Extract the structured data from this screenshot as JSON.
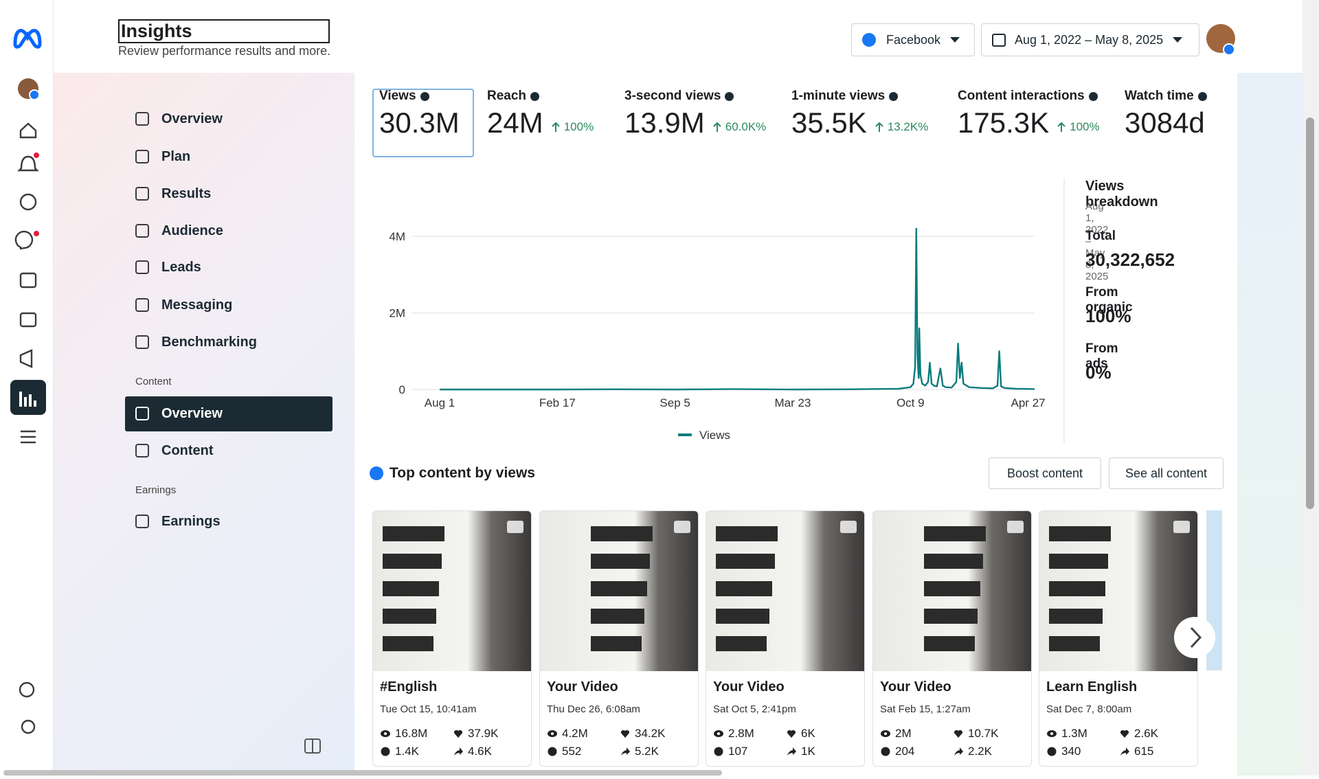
{
  "header": {
    "title": "Insights",
    "subtitle": "Review performance results and more.",
    "platform": "Facebook",
    "date_range": "Aug 1, 2022 – May 8, 2025"
  },
  "nav": {
    "items": [
      "Overview",
      "Plan",
      "Results",
      "Audience",
      "Leads",
      "Messaging",
      "Benchmarking"
    ],
    "content_heading": "Content",
    "content_items": [
      "Overview",
      "Content"
    ],
    "earnings_heading": "Earnings",
    "earnings_items": [
      "Earnings"
    ]
  },
  "metrics": [
    {
      "label": "Views",
      "value": "30.3M"
    },
    {
      "label": "Reach",
      "value": "24M",
      "change": "100%"
    },
    {
      "label": "3-second views",
      "value": "13.9M",
      "change": "60.0K%"
    },
    {
      "label": "1-minute views",
      "value": "35.5K",
      "change": "13.2K%"
    },
    {
      "label": "Content interactions",
      "value": "175.3K",
      "change": "100%"
    },
    {
      "label": "Watch time",
      "value": "3084d"
    }
  ],
  "chart_data": {
    "type": "line",
    "x": [
      0,
      100,
      200,
      300,
      400,
      500,
      600,
      700,
      780,
      800,
      805,
      808,
      810,
      812,
      814,
      815,
      817,
      820,
      825,
      830,
      833,
      836,
      840,
      845,
      851,
      855,
      860,
      870,
      878,
      881,
      884,
      887,
      890,
      900,
      920,
      940,
      948,
      951,
      954,
      960,
      980,
      1000,
      1011
    ],
    "xlim": [
      0,
      1011
    ],
    "xticks": [
      {
        "value": 0,
        "label": "Aug 1"
      },
      {
        "value": 200,
        "label": "Feb 17"
      },
      {
        "value": 400,
        "label": "Sep 5"
      },
      {
        "value": 600,
        "label": "Mar 23"
      },
      {
        "value": 800,
        "label": "Oct 9"
      },
      {
        "value": 1000,
        "label": "Apr 27"
      }
    ],
    "ylim": [
      0,
      4200000
    ],
    "yticks": [
      0,
      {
        "value": 2000000,
        "label": "2M"
      },
      {
        "value": 4000000,
        "label": "4M"
      }
    ],
    "grid": true,
    "legend": "bottom",
    "series": [
      {
        "name": "Views",
        "color": "#0b7b7b",
        "values": [
          0,
          0,
          0,
          5000,
          0,
          10000,
          0,
          5000,
          20000,
          60000,
          150000,
          600000,
          4200000,
          900000,
          300000,
          1600000,
          400000,
          150000,
          100000,
          200000,
          700000,
          150000,
          100000,
          80000,
          550000,
          100000,
          60000,
          50000,
          200000,
          1200000,
          300000,
          700000,
          150000,
          60000,
          40000,
          30000,
          100000,
          1000000,
          80000,
          40000,
          20000,
          15000,
          10000
        ]
      }
    ]
  },
  "breakdown": {
    "title": "Views breakdown",
    "date_range": "Aug 1, 2022 – May 8, 2025",
    "rows": [
      {
        "label": "Total",
        "value": "30,322,652"
      },
      {
        "label": "From organic",
        "value": "100%"
      },
      {
        "label": "From ads",
        "value": "0%"
      }
    ]
  },
  "top_content": {
    "title": "Top content by views",
    "buttons": [
      "Boost content",
      "See all content"
    ],
    "cards": [
      {
        "title": "#English",
        "date": "Tue Oct 15, 10:41am",
        "views": "16.8M",
        "reactions": "37.9K",
        "comments": "1.4K",
        "shares": "4.6K"
      },
      {
        "title": "Your Video",
        "date": "Thu Dec 26, 6:08am",
        "views": "4.2M",
        "reactions": "34.2K",
        "comments": "552",
        "shares": "5.2K"
      },
      {
        "title": "Your Video",
        "date": "Sat Oct 5, 2:41pm",
        "views": "2.8M",
        "reactions": "6K",
        "comments": "107",
        "shares": "1K"
      },
      {
        "title": "Your Video",
        "date": "Sat Feb 15, 1:27am",
        "views": "2M",
        "reactions": "10.7K",
        "comments": "204",
        "shares": "2.2K"
      },
      {
        "title": "Learn English",
        "date": "Sat Dec 7, 8:00am",
        "views": "1.3M",
        "reactions": "2.6K",
        "comments": "340",
        "shares": "615"
      }
    ]
  }
}
